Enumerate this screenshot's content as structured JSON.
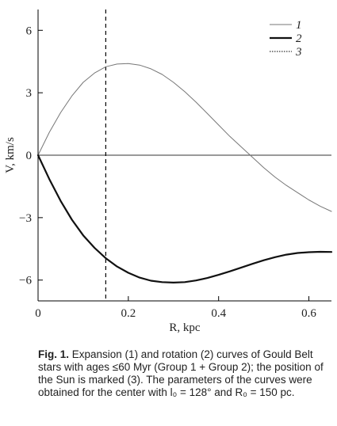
{
  "chart_data": {
    "type": "line",
    "title": "",
    "xlabel": "R, kpc",
    "ylabel": "V, km/s",
    "xlim": [
      0,
      0.65
    ],
    "ylim": [
      -7,
      7
    ],
    "x_ticks": [
      0,
      0.2,
      0.4,
      0.6
    ],
    "x_tick_labels": [
      "0",
      "0.2",
      "0.4",
      "0.6"
    ],
    "y_ticks": [
      -6,
      -3,
      0,
      3,
      6
    ],
    "y_tick_labels": [
      "−6",
      "−3",
      "0",
      "3",
      "6"
    ],
    "grid": false,
    "legend_position": "top-right",
    "zero_line": 0,
    "sun_position": 0.15,
    "series": [
      {
        "name": "1",
        "style": "thin-gray",
        "color": "#777777",
        "x": [
          0,
          0.025,
          0.05,
          0.075,
          0.1,
          0.125,
          0.15,
          0.175,
          0.2,
          0.225,
          0.25,
          0.275,
          0.3,
          0.325,
          0.35,
          0.375,
          0.4,
          0.425,
          0.45,
          0.475,
          0.5,
          0.525,
          0.55,
          0.575,
          0.6,
          0.625,
          0.65
        ],
        "values": [
          0,
          1.1,
          2.05,
          2.85,
          3.5,
          3.95,
          4.25,
          4.38,
          4.4,
          4.33,
          4.15,
          3.88,
          3.5,
          3.05,
          2.55,
          2.0,
          1.45,
          0.9,
          0.4,
          -0.1,
          -0.6,
          -1.05,
          -1.45,
          -1.8,
          -2.15,
          -2.45,
          -2.7
        ]
      },
      {
        "name": "2",
        "style": "thick-black",
        "color": "#111111",
        "x": [
          0,
          0.025,
          0.05,
          0.075,
          0.1,
          0.125,
          0.15,
          0.175,
          0.2,
          0.225,
          0.25,
          0.275,
          0.3,
          0.325,
          0.35,
          0.375,
          0.4,
          0.425,
          0.45,
          0.475,
          0.5,
          0.525,
          0.55,
          0.575,
          0.6,
          0.625,
          0.65
        ],
        "values": [
          0,
          -1.15,
          -2.2,
          -3.1,
          -3.85,
          -4.45,
          -4.95,
          -5.35,
          -5.65,
          -5.88,
          -6.03,
          -6.1,
          -6.12,
          -6.1,
          -6.02,
          -5.9,
          -5.75,
          -5.58,
          -5.4,
          -5.22,
          -5.05,
          -4.9,
          -4.78,
          -4.7,
          -4.66,
          -4.64,
          -4.65
        ]
      },
      {
        "name": "3",
        "style": "dashed-black",
        "color": "#000000"
      }
    ]
  },
  "caption": {
    "fig_label": "Fig. 1.",
    "text": " Expansion (1) and rotation (2) curves of Gould Belt stars with ages ≤60 Myr (Group 1 + Group 2); the position of the Sun is marked (3). The parameters of the curves were obtained for the center with l₀ = 128° and R₀ = 150 pc."
  }
}
